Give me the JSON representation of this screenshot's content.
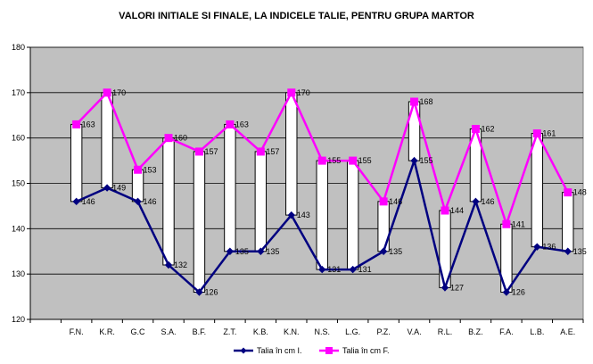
{
  "chart_data": {
    "type": "line",
    "title": "VALORI INITIALE SI FINALE, LA INDICELE TALIE, PENTRU  GRUPA MARTOR",
    "categories": [
      "F.N.",
      "K.R.",
      "G.C",
      "S.A.",
      "B.F.",
      "Z.T.",
      "K.B.",
      "K.N.",
      "N.S.",
      "L.G.",
      "P.Z.",
      "V.A.",
      "R.L.",
      "B.Z.",
      "F.A.",
      "L.B.",
      "A.E."
    ],
    "series": [
      {
        "name": "Talia în cm I.",
        "color": "#000080",
        "marker": "diamond",
        "values": [
          146,
          149,
          146,
          132,
          126,
          135,
          135,
          143,
          131,
          131,
          135,
          155,
          127,
          146,
          126,
          136,
          135
        ]
      },
      {
        "name": "Talia în cm F.",
        "color": "#ff00ff",
        "marker": "square",
        "values": [
          163,
          170,
          153,
          160,
          157,
          163,
          157,
          170,
          155,
          155,
          146,
          168,
          144,
          162,
          141,
          161,
          148
        ]
      }
    ],
    "ylim": [
      120,
      180
    ],
    "yticks": [
      120,
      130,
      140,
      150,
      160,
      170,
      180
    ],
    "grid": true,
    "plot_background": "#c0c0c0",
    "high_low_bars": true,
    "legend_position": "bottom"
  }
}
